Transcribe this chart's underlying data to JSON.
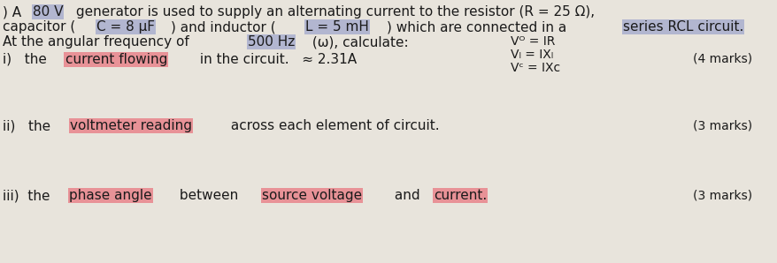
{
  "background_color": "#e8e4dc",
  "title_lines": [
    ") A 80 V generator is used to supply an alternating current to the resistor (R = 25 Ω),",
    "capacitor (C = 8 μF) and inductor (L = 5 mH) which are connected in a series RCL circuit.",
    "At the angular frequency of 500 Hz (ω), calculate:"
  ],
  "items": [
    {
      "label": "i)",
      "text": "   the current flowing in the circuit.",
      "annotation": "≈ 2.31A",
      "marks": "(4 marks)",
      "highlight_words": [
        "current",
        "flowing"
      ],
      "side_notes": [
        "Vᴼ = IR",
        "Vₗ = IXₗ",
        "Vᶜ = IXc"
      ]
    },
    {
      "label": "ii)",
      "text": "  the voltmeter reading across each element of circuit.",
      "annotation": "",
      "marks": "(3 marks)",
      "highlight_words": [
        "voltmeter",
        "reading"
      ]
    },
    {
      "label": "iii)",
      "text": " the phase angle between source voltage and current.",
      "annotation": "",
      "marks": "(3 marks)",
      "highlight_words": [
        "phase",
        "angle",
        "source",
        "voltage",
        "and",
        "current."
      ]
    }
  ],
  "highlight_title_segments": [
    {
      "text": "80 V",
      "color": "#a0a8d8"
    },
    {
      "text": "C = 8 μF",
      "color": "#a0a8d8"
    },
    {
      "text": "L = 5 mH",
      "color": "#a0a8d8"
    },
    {
      "text": "series RCL circuit.",
      "color": "#a0a8d8"
    },
    {
      "text": "500 Hz",
      "color": "#a0a8d8"
    }
  ],
  "font_size_main": 11,
  "font_size_marks": 11,
  "text_color": "#1a1a1a"
}
